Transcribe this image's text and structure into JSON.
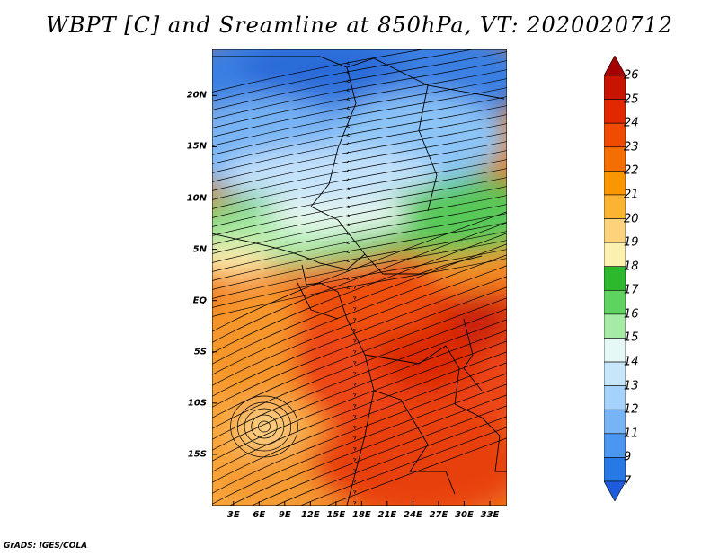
{
  "title": "WBPT [C] and Sreamline at 850hPa, VT: 2020020712",
  "footer": "GrADS: IGES/COLA",
  "map": {
    "lat_labels": [
      "20N",
      "15N",
      "10N",
      "5N",
      "EQ",
      "5S",
      "10S",
      "15S"
    ],
    "lat_values": [
      20,
      15,
      10,
      5,
      0,
      -5,
      -10,
      -15
    ],
    "lon_labels": [
      "3E",
      "6E",
      "9E",
      "12E",
      "15E",
      "18E",
      "21E",
      "24E",
      "27E",
      "30E",
      "33E"
    ],
    "lon_values": [
      3,
      6,
      9,
      12,
      15,
      18,
      21,
      24,
      27,
      30,
      33
    ],
    "lat_range": [
      -20,
      24.5
    ],
    "lon_range": [
      0.5,
      35
    ]
  },
  "colorbar": {
    "labels": [
      "26",
      "25",
      "24",
      "23",
      "22",
      "21",
      "20",
      "19",
      "18",
      "17",
      "16",
      "15",
      "14",
      "13",
      "12",
      "11",
      "9",
      "7"
    ],
    "colors": [
      "#a50000",
      "#c81400",
      "#e12800",
      "#f04b00",
      "#f56e00",
      "#fa9600",
      "#fbb432",
      "#fcd27d",
      "#fcf0b0",
      "#2eb82e",
      "#5fd35f",
      "#a5eba5",
      "#e6f8f5",
      "#c8e6fa",
      "#a5d2fa",
      "#78b4f5",
      "#4b96f0",
      "#2878e6",
      "#1e5adc"
    ]
  }
}
